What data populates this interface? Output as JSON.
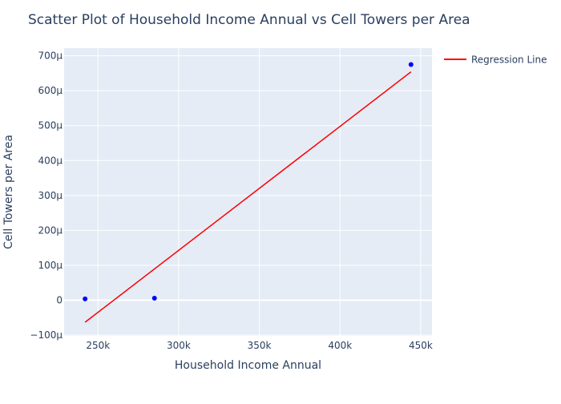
{
  "chart_data": {
    "type": "scatter",
    "title": "Scatter Plot of Household Income Annual vs Cell Towers per Area",
    "xlabel": "Household Income Annual",
    "ylabel": "Cell Towers per Area",
    "xlim": [
      229000,
      457000
    ],
    "ylim": [
      -0.000102,
      0.000722
    ],
    "x_ticks": [
      {
        "value": 250000,
        "label": "250k"
      },
      {
        "value": 300000,
        "label": "300k"
      },
      {
        "value": 350000,
        "label": "350k"
      },
      {
        "value": 400000,
        "label": "400k"
      },
      {
        "value": 450000,
        "label": "450k"
      }
    ],
    "y_ticks": [
      {
        "value": -0.0001,
        "label": "−100μ"
      },
      {
        "value": 0,
        "label": "0"
      },
      {
        "value": 0.0001,
        "label": "100μ"
      },
      {
        "value": 0.0002,
        "label": "200μ"
      },
      {
        "value": 0.0003,
        "label": "300μ"
      },
      {
        "value": 0.0004,
        "label": "400μ"
      },
      {
        "value": 0.0005,
        "label": "500μ"
      },
      {
        "value": 0.0006,
        "label": "600μ"
      },
      {
        "value": 0.0007,
        "label": "700μ"
      }
    ],
    "points": {
      "x": [
        242000,
        285000,
        444000
      ],
      "y": [
        4e-06,
        6e-06,
        0.000675
      ],
      "color": "#0000ff"
    },
    "regression_line": {
      "name": "Regression Line",
      "x": [
        242000,
        444000
      ],
      "y": [
        -6.3e-05,
        0.000654
      ],
      "color": "#ff0000"
    },
    "grid": true,
    "legend_position": "top-right",
    "plot_background": "#e5ecf6",
    "text_color": "#2a3f5f"
  }
}
